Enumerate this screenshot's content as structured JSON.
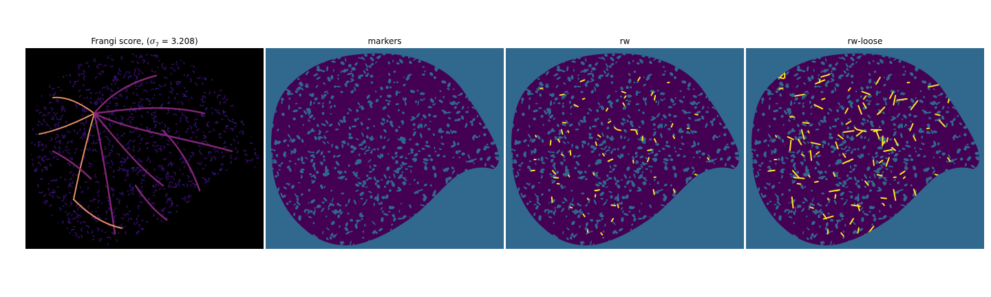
{
  "figure": {
    "panels": [
      {
        "id": "frangi",
        "title_prefix": "Frangi score, (",
        "title_sigma": "σ",
        "title_sub": "7",
        "title_suffix": " = 3.208)",
        "colormap": "magma",
        "background": "#000000"
      },
      {
        "id": "markers",
        "title": "markers",
        "colormap": "viridis"
      },
      {
        "id": "rw",
        "title": "rw",
        "colormap": "viridis"
      },
      {
        "id": "rw-loose",
        "title": "rw-loose",
        "colormap": "viridis"
      }
    ],
    "colors": {
      "segment_background": "#31688e",
      "tissue": "#440154",
      "highlight": "#fde725",
      "frangi_low": "#3b0f70",
      "frangi_mid": "#8c2981",
      "frangi_high": "#fe9f6d"
    }
  }
}
